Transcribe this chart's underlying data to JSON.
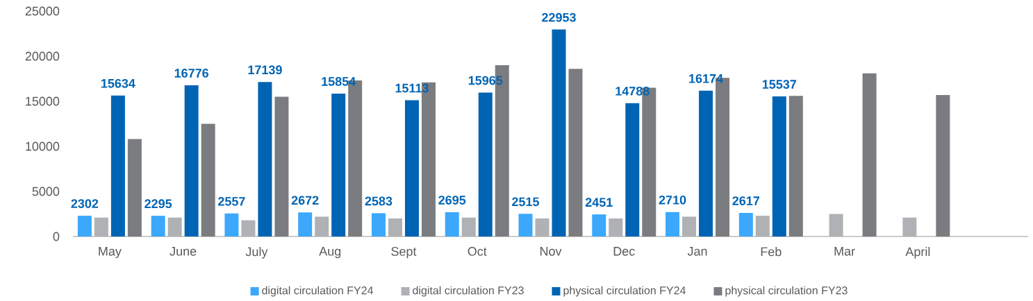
{
  "chart_data": {
    "type": "bar",
    "categories": [
      "May",
      "June",
      "July",
      "Aug",
      "Sept",
      "Oct",
      "Nov",
      "Dec",
      "Jan",
      "Feb",
      "Mar",
      "April",
      null
    ],
    "series": [
      {
        "name": "digital circulation FY24",
        "color": "#3ba8fc",
        "values": [
          2302,
          2295,
          2557,
          2672,
          2583,
          2695,
          2515,
          2451,
          2710,
          2617,
          null,
          null,
          null
        ],
        "value_labels": [
          "2302",
          "2295",
          "2557",
          "2672",
          "2583",
          "2695",
          "2515",
          "2451",
          "2710",
          "2617",
          null,
          null,
          null
        ]
      },
      {
        "name": "digital circulation FY23",
        "color": "#b0b1b4",
        "values": [
          2100,
          2100,
          1800,
          2200,
          2000,
          2100,
          2000,
          2000,
          2200,
          2300,
          2500,
          2100,
          null
        ]
      },
      {
        "name": "physical circulation FY24",
        "color": "#0064b4",
        "values": [
          15634,
          16776,
          17139,
          15854,
          15113,
          15965,
          22953,
          14788,
          16174,
          15537,
          null,
          null,
          null
        ],
        "value_labels": [
          "15634",
          "16776",
          "17139",
          "15854",
          "15113",
          "15965",
          "22953",
          "14788",
          "16174",
          "15537",
          null,
          null,
          null
        ]
      },
      {
        "name": "physical circulation FY23",
        "color": "#7a7c80",
        "values": [
          10800,
          12500,
          15500,
          17300,
          17100,
          19000,
          18600,
          16500,
          17600,
          15600,
          18100,
          15700,
          null
        ]
      }
    ],
    "ylim": [
      0,
      25000
    ],
    "yticks": [
      0,
      5000,
      10000,
      15000,
      20000,
      25000
    ],
    "legend": "bottom"
  }
}
